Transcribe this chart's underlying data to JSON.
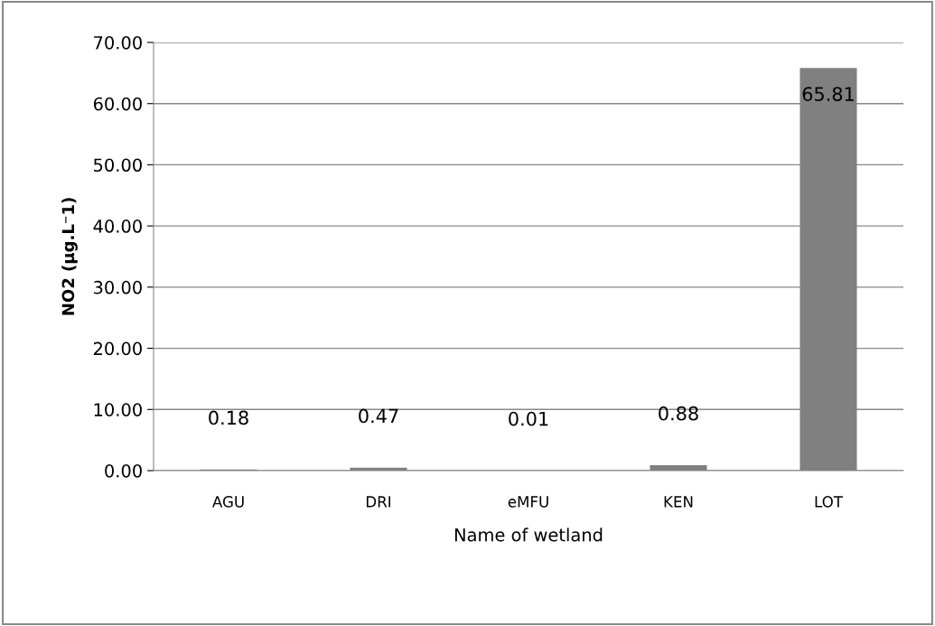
{
  "chart_data": {
    "type": "bar",
    "xlabel": "Name of wetland",
    "ylabel": "NO2 (µg.L⁻1)",
    "categories": [
      "AGU",
      "DRI",
      "eMFU",
      "KEN",
      "LOT"
    ],
    "values": [
      0.18,
      0.47,
      0.01,
      0.88,
      65.81
    ],
    "value_labels": [
      "0.18",
      "0.47",
      "0.01",
      "0.88",
      "65.81"
    ],
    "color": "#808080",
    "ylim": [
      0,
      70
    ],
    "yticks": [
      {
        "value": 0,
        "label": "0.00"
      },
      {
        "value": 10,
        "label": "10.00"
      },
      {
        "value": 20,
        "label": "20.00"
      },
      {
        "value": 30,
        "label": "30.00"
      },
      {
        "value": 40,
        "label": "40.00"
      },
      {
        "value": 50,
        "label": "50.00"
      },
      {
        "value": 60,
        "label": "60.00"
      },
      {
        "value": 70,
        "label": "70.00"
      }
    ],
    "grid": "y"
  }
}
